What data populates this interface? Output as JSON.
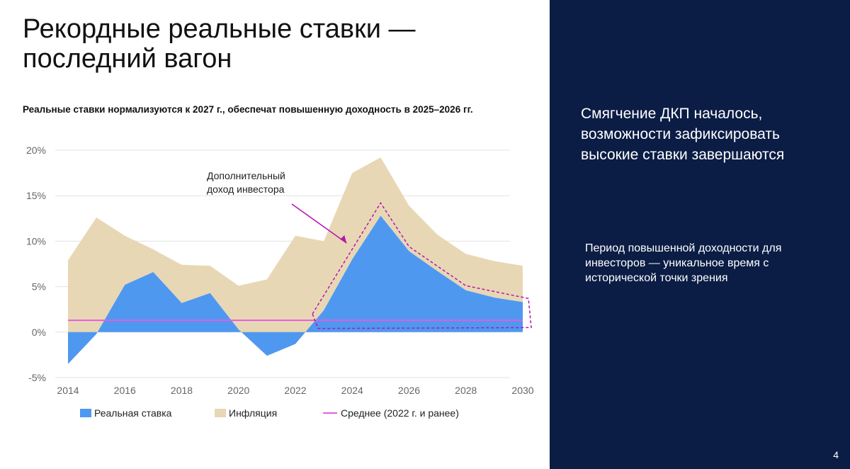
{
  "slide": {
    "title_lines": [
      "Рекордные реальные ставки —",
      "последний вагон"
    ],
    "subtitle": "Реальные ставки нормализуются к 2027 г., обеспечат повышенную доходность в 2025–2026 гг.",
    "page_number": "4"
  },
  "side_panel": {
    "headline": "Смягчение ДКП началось, возможности зафиксировать высокие ставки завершаются",
    "note": "Период повышенной доходности для инвесторов — уникальное время с исторической точки зрения"
  },
  "chart_data": {
    "type": "area",
    "title": "Реальные ставки нормализуются к 2027 г., обеспечат повышенную доходность в 2025–2026 гг.",
    "xlabel": "",
    "ylabel": "",
    "x": [
      2014,
      2015,
      2016,
      2017,
      2018,
      2019,
      2020,
      2021,
      2022,
      2023,
      2024,
      2025,
      2026,
      2027,
      2028,
      2029,
      2030
    ],
    "xlim": [
      2014,
      2030
    ],
    "ylim": [
      -5,
      20
    ],
    "x_ticks": [
      2014,
      2016,
      2018,
      2020,
      2022,
      2024,
      2026,
      2028,
      2030
    ],
    "x_tick_labels": [
      "2014",
      "2016",
      "2018",
      "2020",
      "2022",
      "2024",
      "2026",
      "2028",
      "2030"
    ],
    "y_ticks": [
      -5,
      0,
      5,
      10,
      15,
      20
    ],
    "y_tick_labels": [
      "-5%",
      "0%",
      "5%",
      "10%",
      "15%",
      "20%"
    ],
    "grid": true,
    "series": [
      {
        "name": "Реальная ставка",
        "kind": "area",
        "color": "#4f98f0",
        "values": [
          -3.5,
          -0.2,
          5.2,
          6.6,
          3.2,
          4.3,
          0.3,
          -2.6,
          -1.3,
          2.4,
          8.0,
          12.8,
          8.9,
          6.7,
          4.6,
          3.8,
          3.3
        ]
      },
      {
        "name": "Инфляция",
        "kind": "area",
        "color": "#e8d7b4",
        "values": [
          11.4,
          12.8,
          5.4,
          2.5,
          4.2,
          3.0,
          4.8,
          8.4,
          11.9,
          7.6,
          9.5,
          6.4,
          5.0,
          4.0,
          4.0,
          4.0,
          4.0
        ]
      },
      {
        "name": "Среднее (2022 г. и ранее)",
        "kind": "line",
        "color": "#e55ce0",
        "values": [
          1.3,
          1.3,
          1.3,
          1.3,
          1.3,
          1.3,
          1.3,
          1.3,
          1.3,
          1.3,
          1.3,
          1.3,
          1.3,
          1.3,
          1.3,
          1.3,
          1.3
        ]
      }
    ],
    "annotation": {
      "text_lines": [
        "Дополнительный",
        "доход инвестора"
      ],
      "color": "#b514b0",
      "arrow_to": [
        2023.8,
        9.8
      ],
      "highlight_polygon": [
        [
          2022.6,
          2.0
        ],
        [
          2025.0,
          14.2
        ],
        [
          2026.0,
          9.4
        ],
        [
          2028.0,
          5.1
        ],
        [
          2030.2,
          3.7
        ],
        [
          2030.3,
          0.5
        ],
        [
          2022.8,
          0.4
        ]
      ]
    },
    "legend": {
      "placement": "bottom",
      "entries": [
        "Реальная ставка",
        "Инфляция",
        "Среднее (2022 г. и ранее)"
      ]
    }
  }
}
